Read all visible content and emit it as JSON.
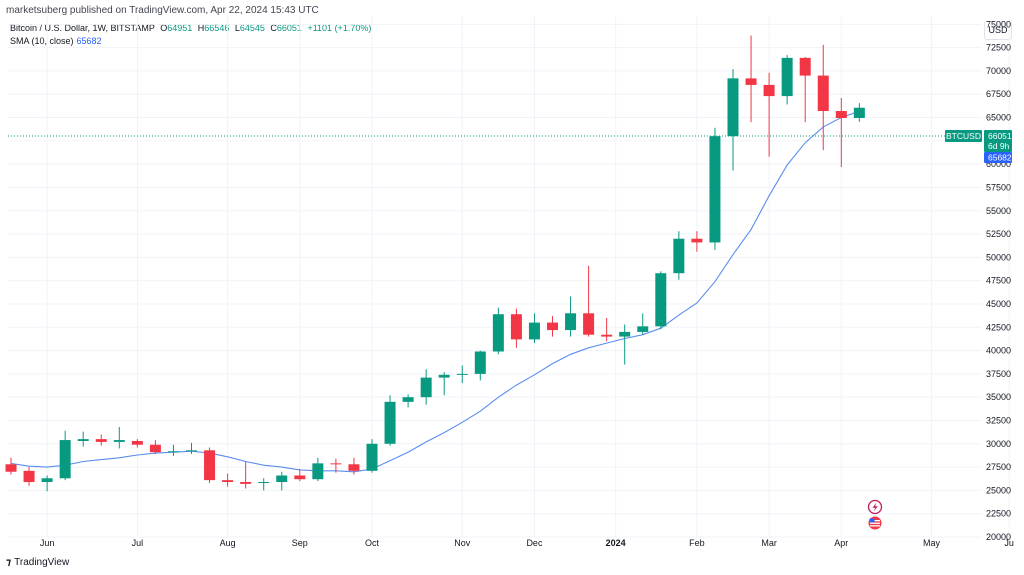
{
  "header": {
    "published_by": "marketsuberg published on TradingView.com, Apr 22, 2024 15:43 UTC"
  },
  "legend": {
    "symbol": "Bitcoin / U.S. Dollar, 1W, BITSTAMP",
    "open_label": "O",
    "open": "64951",
    "high_label": "H",
    "high": "66546",
    "low_label": "L",
    "low": "64545",
    "close_label": "C",
    "close": "66051",
    "change": "+1101 (+1.70%)",
    "sma_label": "SMA (10, close)",
    "sma_value": "65682"
  },
  "currency_button": "USD",
  "price_tags": {
    "ticker": "BTCUSD",
    "price": "66051",
    "countdown": "6d 9h",
    "sma": "65682"
  },
  "footer": {
    "logo_text": "TradingView"
  },
  "colors": {
    "up": "#089981",
    "down": "#f23645",
    "sma": "#5b8def",
    "sma_tag": "#2962ff",
    "grid": "#f0f3fa"
  },
  "icons": [
    "lightning-icon",
    "us-flag-icon"
  ],
  "chart_data": {
    "type": "candlestick",
    "title": "Bitcoin / U.S. Dollar, 1W, BITSTAMP",
    "ylim": [
      20000,
      76000
    ],
    "grid": true,
    "y_ticks": [
      20000,
      22500,
      25000,
      27500,
      30000,
      32500,
      35000,
      37500,
      40000,
      42500,
      45000,
      47500,
      50000,
      52500,
      55000,
      57500,
      60000,
      62500,
      65000,
      67500,
      70000,
      72500,
      75000
    ],
    "x_labels": [
      {
        "label": "Jun",
        "week": 2,
        "bold": false
      },
      {
        "label": "Jul",
        "week": 7,
        "bold": false
      },
      {
        "label": "Aug",
        "week": 12,
        "bold": false
      },
      {
        "label": "Sep",
        "week": 16,
        "bold": false
      },
      {
        "label": "Oct",
        "week": 20,
        "bold": false
      },
      {
        "label": "Nov",
        "week": 25,
        "bold": false
      },
      {
        "label": "Dec",
        "week": 29,
        "bold": false
      },
      {
        "label": "2024",
        "week": 33.5,
        "bold": true
      },
      {
        "label": "Feb",
        "week": 38,
        "bold": false
      },
      {
        "label": "Mar",
        "week": 42,
        "bold": false
      },
      {
        "label": "Apr",
        "week": 46,
        "bold": false
      },
      {
        "label": "May",
        "week": 51,
        "bold": false
      },
      {
        "label": "Ju",
        "week": 55.3,
        "bold": false
      }
    ],
    "candles": [
      {
        "o": 27800,
        "h": 28500,
        "l": 26700,
        "c": 27000
      },
      {
        "o": 27100,
        "h": 27500,
        "l": 25500,
        "c": 25900
      },
      {
        "o": 25900,
        "h": 26600,
        "l": 24900,
        "c": 26300
      },
      {
        "o": 26300,
        "h": 31400,
        "l": 26100,
        "c": 30400
      },
      {
        "o": 30300,
        "h": 31300,
        "l": 29700,
        "c": 30500
      },
      {
        "o": 30500,
        "h": 31000,
        "l": 29800,
        "c": 30200
      },
      {
        "o": 30200,
        "h": 31800,
        "l": 29500,
        "c": 30400
      },
      {
        "o": 30300,
        "h": 30500,
        "l": 29600,
        "c": 29900
      },
      {
        "o": 29900,
        "h": 30400,
        "l": 28900,
        "c": 29100
      },
      {
        "o": 29100,
        "h": 29900,
        "l": 28700,
        "c": 29200
      },
      {
        "o": 29200,
        "h": 30100,
        "l": 28900,
        "c": 29300
      },
      {
        "o": 29300,
        "h": 29600,
        "l": 25800,
        "c": 26100
      },
      {
        "o": 26100,
        "h": 26800,
        "l": 25400,
        "c": 25900
      },
      {
        "o": 25900,
        "h": 28100,
        "l": 25200,
        "c": 25700
      },
      {
        "o": 25800,
        "h": 26300,
        "l": 25000,
        "c": 25900
      },
      {
        "o": 25900,
        "h": 27000,
        "l": 25000,
        "c": 26600
      },
      {
        "o": 26600,
        "h": 27300,
        "l": 26000,
        "c": 26200
      },
      {
        "o": 26200,
        "h": 28500,
        "l": 26000,
        "c": 27900
      },
      {
        "o": 27900,
        "h": 28400,
        "l": 26900,
        "c": 27800
      },
      {
        "o": 27800,
        "h": 28500,
        "l": 26700,
        "c": 27100
      },
      {
        "o": 27100,
        "h": 30500,
        "l": 26900,
        "c": 30000
      },
      {
        "o": 30000,
        "h": 35200,
        "l": 29800,
        "c": 34500
      },
      {
        "o": 34500,
        "h": 35300,
        "l": 33900,
        "c": 35000
      },
      {
        "o": 35000,
        "h": 38000,
        "l": 34200,
        "c": 37100
      },
      {
        "o": 37100,
        "h": 37700,
        "l": 35200,
        "c": 37400
      },
      {
        "o": 37400,
        "h": 38400,
        "l": 36500,
        "c": 37500
      },
      {
        "o": 37500,
        "h": 40000,
        "l": 36800,
        "c": 39900
      },
      {
        "o": 39900,
        "h": 44600,
        "l": 39600,
        "c": 43900
      },
      {
        "o": 43900,
        "h": 44500,
        "l": 40300,
        "c": 41200
      },
      {
        "o": 41200,
        "h": 44000,
        "l": 40800,
        "c": 43000
      },
      {
        "o": 43000,
        "h": 43700,
        "l": 41500,
        "c": 42200
      },
      {
        "o": 42200,
        "h": 45800,
        "l": 41500,
        "c": 44000
      },
      {
        "o": 44000,
        "h": 49100,
        "l": 41500,
        "c": 41700
      },
      {
        "o": 41700,
        "h": 43500,
        "l": 41000,
        "c": 41500
      },
      {
        "o": 41500,
        "h": 42800,
        "l": 38500,
        "c": 42000
      },
      {
        "o": 42000,
        "h": 44000,
        "l": 41700,
        "c": 42600
      },
      {
        "o": 42600,
        "h": 48500,
        "l": 42300,
        "c": 48300
      },
      {
        "o": 48300,
        "h": 52800,
        "l": 47600,
        "c": 52000
      },
      {
        "o": 52000,
        "h": 52800,
        "l": 50600,
        "c": 51600
      },
      {
        "o": 51600,
        "h": 63900,
        "l": 50800,
        "c": 63000
      },
      {
        "o": 63000,
        "h": 70200,
        "l": 59300,
        "c": 69200
      },
      {
        "o": 69200,
        "h": 73800,
        "l": 64500,
        "c": 68500
      },
      {
        "o": 68500,
        "h": 69800,
        "l": 60800,
        "c": 67300
      },
      {
        "o": 67300,
        "h": 71700,
        "l": 66400,
        "c": 71400
      },
      {
        "o": 71400,
        "h": 71500,
        "l": 64500,
        "c": 69500
      },
      {
        "o": 69500,
        "h": 72800,
        "l": 61500,
        "c": 65700
      },
      {
        "o": 65700,
        "h": 67100,
        "l": 59700,
        "c": 64950
      },
      {
        "o": 64951,
        "h": 66546,
        "l": 64545,
        "c": 66051
      }
    ],
    "sma": {
      "name": "SMA (10, close)",
      "values": [
        27900,
        27600,
        27500,
        27700,
        28100,
        28300,
        28500,
        28800,
        29000,
        29100,
        29200,
        29000,
        28600,
        28100,
        27700,
        27500,
        27200,
        27100,
        27100,
        27000,
        27300,
        28200,
        29100,
        30200,
        31200,
        32300,
        33500,
        35000,
        36300,
        37400,
        38600,
        39600,
        40300,
        40800,
        41300,
        41700,
        42400,
        43800,
        45100,
        47400,
        50300,
        53000,
        56600,
        59900,
        62300,
        64000,
        65000,
        65682
      ]
    }
  }
}
